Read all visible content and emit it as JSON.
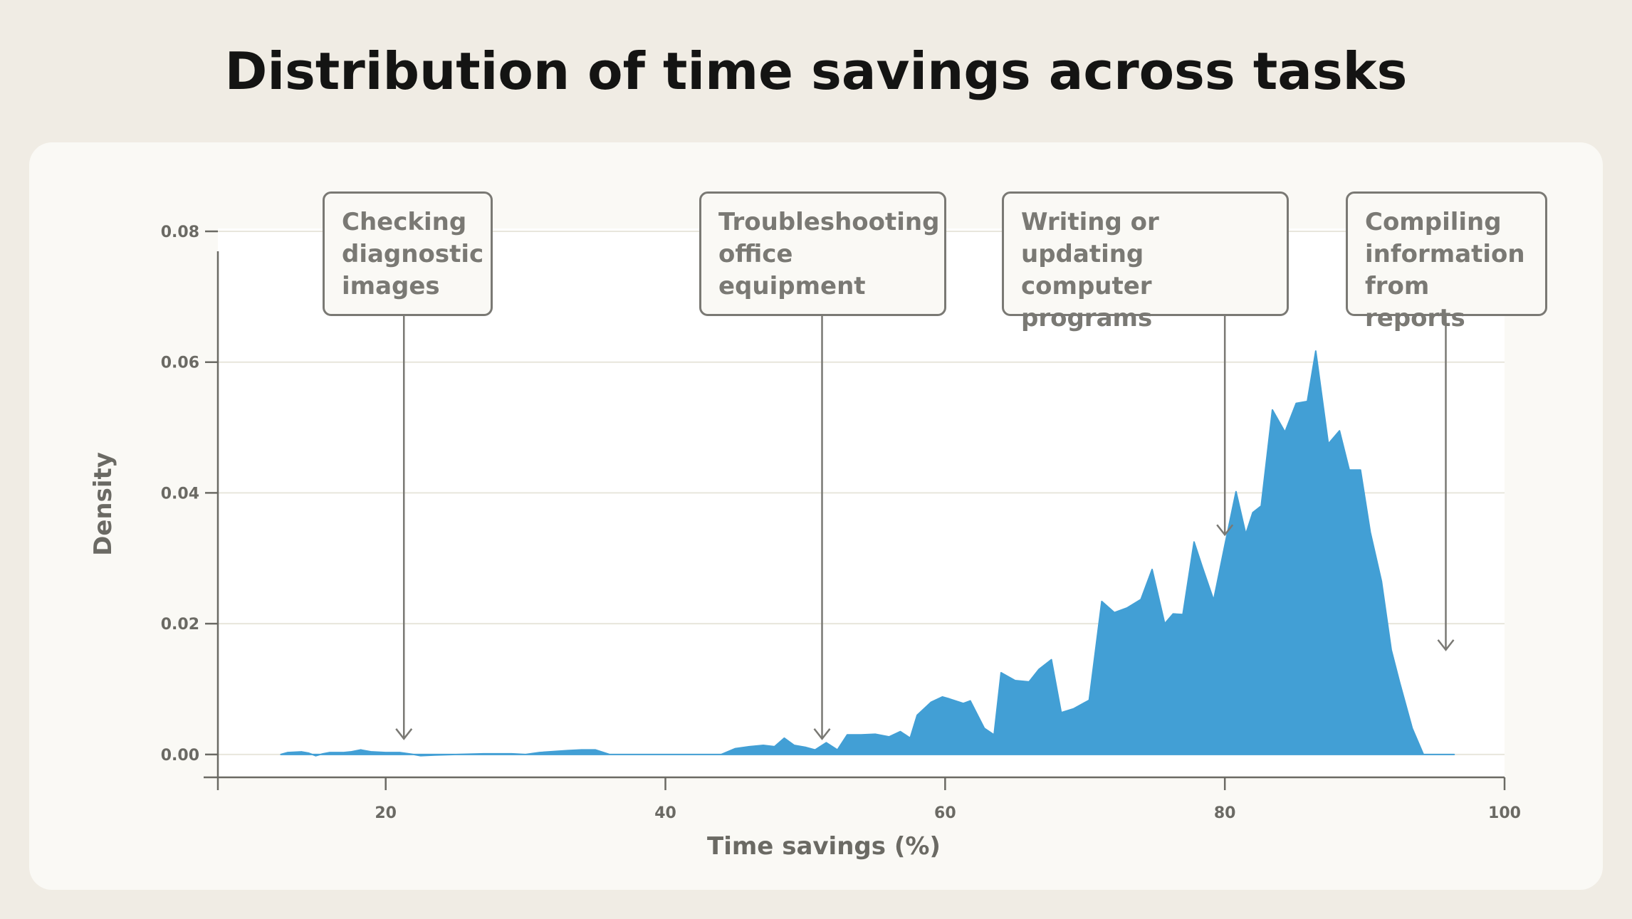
{
  "title": "Distribution of time savings across tasks",
  "chart_data": {
    "type": "area",
    "title": "Distribution of time savings across tasks",
    "xlabel": "Time savings (%)",
    "ylabel": "Density",
    "xlim": [
      8,
      100
    ],
    "ylim": [
      -0.0035,
      0.08
    ],
    "x_ticks": [
      "20",
      "40",
      "60",
      "80",
      "100"
    ],
    "y_ticks": [
      "0.00",
      "0.02",
      "0.04",
      "0.06",
      "0.08"
    ],
    "grid": "horizontal",
    "color": "#429fd5",
    "series": [
      {
        "x": [
          12.5,
          13.0,
          14.0,
          14.5,
          15.0,
          15.5,
          16.0,
          17.0,
          17.5,
          18.2,
          19.0,
          20.0,
          21.0,
          22.0,
          22.5,
          23.5,
          25.0,
          27.0,
          29.0,
          30.0,
          31.0,
          33.0,
          34.0,
          35.0,
          36.0,
          38.0,
          40.0,
          42.0,
          44.0,
          45.0,
          46.0,
          47.0,
          47.8,
          48.5,
          49.2,
          50.0,
          50.7,
          51.5,
          52.3,
          53.0,
          54.0,
          55.0,
          56.0,
          56.8,
          57.5,
          58.0,
          59.0,
          59.8,
          60.3,
          61.3,
          61.8,
          62.8,
          63.5,
          64.0,
          65.0,
          66.0,
          66.7,
          67.6,
          68.3,
          69.2,
          70.3,
          71.2,
          72.1,
          73.0,
          74.0,
          74.8,
          75.7,
          76.3,
          77.0,
          77.8,
          78.4,
          79.2,
          80.0,
          80.8,
          81.5,
          82.0,
          82.6,
          83.4,
          84.3,
          85.1,
          85.9,
          86.5,
          87.4,
          88.2,
          88.9,
          89.7,
          90.4,
          91.2,
          91.9,
          92.5,
          93.4,
          94.2,
          94.9,
          95.6,
          96.4
        ],
        "values": [
          0.0,
          0.0003,
          0.0004,
          0.0002,
          -0.0002,
          0.0001,
          0.0003,
          0.0003,
          0.0004,
          0.0007,
          0.0004,
          0.0003,
          0.0003,
          0.0,
          -0.0002,
          -0.0001,
          0.0,
          0.0001,
          0.0001,
          0.0,
          0.0003,
          0.0006,
          0.0007,
          0.0007,
          0.0,
          0.0,
          0.0,
          0.0,
          0.0,
          0.0009,
          0.0012,
          0.0014,
          0.0012,
          0.0025,
          0.0014,
          0.0011,
          0.0007,
          0.0018,
          0.0007,
          0.003,
          0.003,
          0.0031,
          0.0027,
          0.0035,
          0.0025,
          0.006,
          0.008,
          0.0088,
          0.0085,
          0.0078,
          0.0082,
          0.004,
          0.003,
          0.0125,
          0.0113,
          0.0111,
          0.013,
          0.0145,
          0.0064,
          0.007,
          0.0083,
          0.0234,
          0.0217,
          0.0224,
          0.0237,
          0.0283,
          0.02,
          0.0215,
          0.0214,
          0.0325,
          0.0286,
          0.0236,
          0.032,
          0.0402,
          0.0337,
          0.037,
          0.038,
          0.0527,
          0.0493,
          0.0537,
          0.054,
          0.0617,
          0.0475,
          0.0495,
          0.0435,
          0.0435,
          0.034,
          0.0265,
          0.016,
          0.011,
          0.004,
          0.0,
          0.0,
          0.0,
          0.0
        ]
      }
    ],
    "annotations": [
      {
        "text": "Checking\ndiagnostic\nimages",
        "x": 21.3
      },
      {
        "text": "Troubleshooting\noffice\nequipment",
        "x": 51.2
      },
      {
        "text": "Writing or\nupdating computer\nprograms",
        "x": 80.0
      },
      {
        "text": "Compiling\ninformation\nfrom reports",
        "x": 95.8
      }
    ]
  }
}
